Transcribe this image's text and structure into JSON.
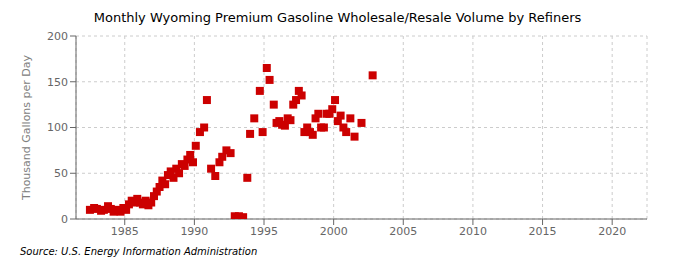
{
  "chart_data": {
    "type": "scatter",
    "title": "Monthly Wyoming Premium Gasoline Wholesale/Resale Volume by Refiners",
    "ylabel": "Thousand Gallons per Day",
    "source": "Source: U.S. Energy Information Administration",
    "color": "#cc0000",
    "marker": "square",
    "grid": true,
    "xlim": [
      1981.5,
      2022.5
    ],
    "ylim": [
      0,
      200
    ],
    "xticks": [
      1985,
      1990,
      1995,
      2000,
      2005,
      2010,
      2015,
      2020
    ],
    "yticks": [
      0,
      50,
      100,
      150,
      200
    ],
    "x": [
      1982.5,
      1982.8,
      1983.0,
      1983.3,
      1983.5,
      1983.8,
      1984.0,
      1984.2,
      1984.5,
      1984.7,
      1984.9,
      1985.1,
      1985.3,
      1985.5,
      1985.7,
      1985.9,
      1986.1,
      1986.3,
      1986.5,
      1986.7,
      1986.9,
      1987.1,
      1987.3,
      1987.5,
      1987.7,
      1987.9,
      1988.1,
      1988.3,
      1988.5,
      1988.7,
      1988.9,
      1989.1,
      1989.3,
      1989.5,
      1989.7,
      1989.9,
      1990.1,
      1990.4,
      1990.7,
      1990.9,
      1991.2,
      1991.5,
      1991.8,
      1992.0,
      1992.3,
      1992.6,
      1992.9,
      1993.2,
      1993.5,
      1993.8,
      1994.0,
      1994.3,
      1994.7,
      1994.9,
      1995.2,
      1995.4,
      1995.7,
      1995.9,
      1996.1,
      1996.3,
      1996.5,
      1996.7,
      1996.9,
      1997.1,
      1997.3,
      1997.5,
      1997.7,
      1997.9,
      1998.1,
      1998.3,
      1998.5,
      1998.7,
      1998.9,
      1999.1,
      1999.3,
      1999.5,
      1999.7,
      1999.9,
      2000.1,
      2000.3,
      2000.5,
      2000.7,
      2000.9,
      2001.2,
      2001.5,
      2002.0,
      2002.8
    ],
    "values": [
      10,
      12,
      11,
      9,
      10,
      14,
      11,
      8,
      10,
      8,
      12,
      10,
      16,
      20,
      18,
      22,
      18,
      16,
      20,
      15,
      18,
      25,
      30,
      35,
      42,
      38,
      48,
      52,
      45,
      55,
      50,
      60,
      58,
      65,
      70,
      62,
      80,
      95,
      100,
      130,
      55,
      47,
      62,
      68,
      75,
      72,
      3,
      3,
      2,
      45,
      93,
      110,
      140,
      95,
      165,
      152,
      125,
      105,
      107,
      103,
      102,
      110,
      108,
      125,
      130,
      140,
      135,
      95,
      100,
      95,
      92,
      110,
      115,
      100,
      100,
      115,
      115,
      120,
      130,
      107,
      113,
      100,
      95,
      110,
      90,
      105,
      157
    ]
  }
}
